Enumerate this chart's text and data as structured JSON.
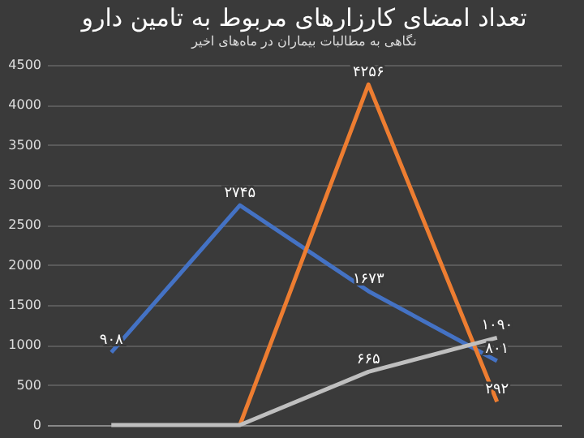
{
  "chart_data": {
    "type": "line",
    "title": "تعداد امضای کارزارهای مربوط به تامین دارو",
    "subtitle": "نگاهی به مطالبات بیماران در ماه‌های اخیر",
    "categories": [
      null,
      null,
      null,
      null
    ],
    "series": [
      {
        "color": "#4472c4",
        "values": [
          908,
          2745,
          1673,
          801
        ],
        "value_labels": [
          "۹۰۸",
          "۲۷۴۵",
          "۱۶۷۳",
          "۸۰۱"
        ]
      },
      {
        "color": "#ed7d31",
        "values": [
          null,
          0,
          4256,
          292
        ],
        "value_labels": [
          null,
          null,
          "۴۲۵۶",
          "۲۹۲"
        ]
      },
      {
        "color": "#bfbfbf",
        "values": [
          0,
          0,
          665,
          1090
        ],
        "value_labels": [
          null,
          null,
          "۶۶۵",
          "۱۰۹۰"
        ]
      }
    ],
    "ylim": [
      0,
      4500
    ],
    "yticks": [
      0,
      500,
      1000,
      1500,
      2000,
      2500,
      3000,
      3500,
      4000,
      4500
    ],
    "grid": "y",
    "tick_labels": "y",
    "marker": "none",
    "line_style": "solid"
  }
}
